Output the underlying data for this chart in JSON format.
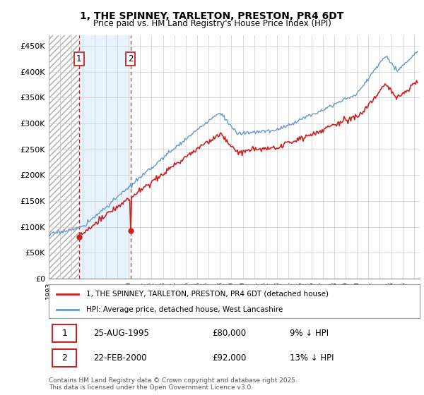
{
  "title_line1": "1, THE SPINNEY, TARLETON, PRESTON, PR4 6DT",
  "title_line2": "Price paid vs. HM Land Registry's House Price Index (HPI)",
  "legend_line1": "1, THE SPINNEY, TARLETON, PRESTON, PR4 6DT (detached house)",
  "legend_line2": "HPI: Average price, detached house, West Lancashire",
  "annotation1_date": "25-AUG-1995",
  "annotation1_price": "£80,000",
  "annotation1_hpi": "9% ↓ HPI",
  "annotation2_date": "22-FEB-2000",
  "annotation2_price": "£92,000",
  "annotation2_hpi": "13% ↓ HPI",
  "footnote": "Contains HM Land Registry data © Crown copyright and database right 2025.\nThis data is licensed under the Open Government Licence v3.0.",
  "hpi_color": "#6699cc",
  "price_color": "#cc2222",
  "ylim_min": 0,
  "ylim_max": 470000,
  "yticks": [
    0,
    50000,
    100000,
    150000,
    200000,
    250000,
    300000,
    350000,
    400000,
    450000
  ],
  "ytick_labels": [
    "£0",
    "£50K",
    "£100K",
    "£150K",
    "£200K",
    "£250K",
    "£300K",
    "£350K",
    "£400K",
    "£450K"
  ],
  "purchase1_year": 1995.65,
  "purchase1_price": 80000,
  "purchase2_year": 2000.15,
  "purchase2_price": 92000,
  "xmin": 1993.0,
  "xmax": 2025.5
}
